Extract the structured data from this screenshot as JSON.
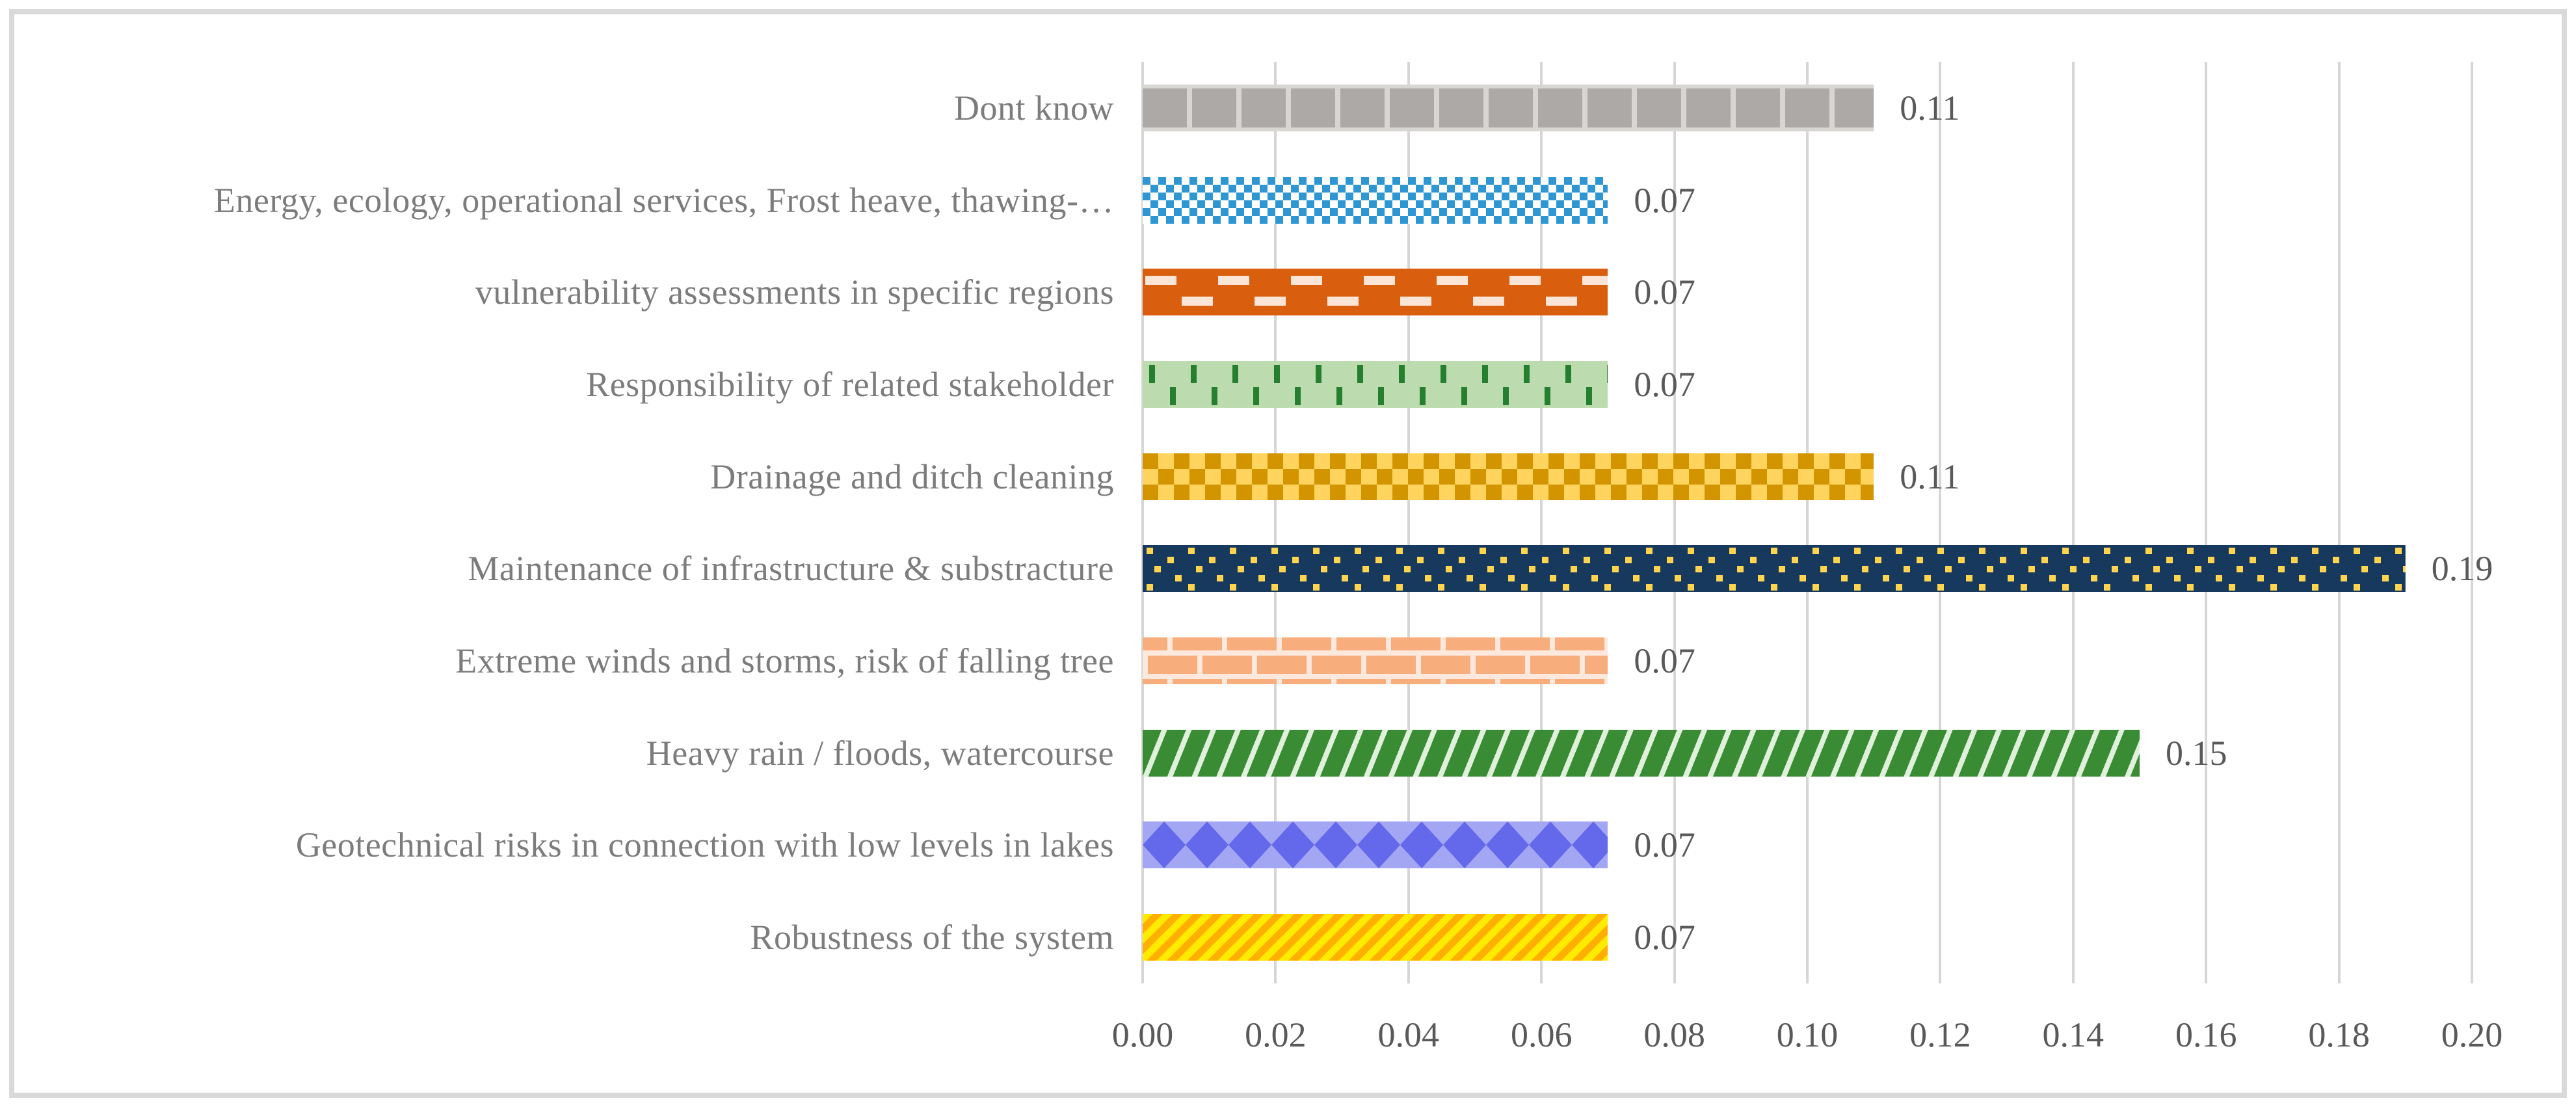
{
  "page": {
    "background_color": "#FFFFFF",
    "border_color": "#D9D9D9",
    "label_text_color": "#7C7C7C",
    "value_text_color": "#595959",
    "gridline_color": "#D6D6D6"
  },
  "chart_data": {
    "type": "bar",
    "orientation": "horizontal",
    "title": "",
    "xlabel": "",
    "ylabel": "",
    "xlim": [
      0.0,
      0.2
    ],
    "grid": "vertical",
    "legend_position": "none",
    "categories": [
      "Dont know",
      "Energy, ecology, operational services, Frost heave, thawing-…",
      "vulnerability assessments in specific regions",
      "Responsibility of related stakeholder",
      "Drainage and ditch cleaning",
      "Maintenance of infrastructure & substracture",
      "Extreme winds and storms, risk of falling tree",
      "Heavy rain / floods, watercourse",
      "Geotechnical risks in connection with low levels in lakes",
      "Robustness of the system"
    ],
    "values": [
      0.11,
      0.07,
      0.07,
      0.07,
      0.11,
      0.19,
      0.07,
      0.15,
      0.07,
      0.07
    ],
    "value_labels": [
      "0.11",
      "0.07",
      "0.07",
      "0.07",
      "0.11",
      "0.19",
      "0.07",
      "0.15",
      "0.07",
      "0.07"
    ],
    "x_ticks": [
      "0.00",
      "0.02",
      "0.04",
      "0.06",
      "0.08",
      "0.10",
      "0.12",
      "0.14",
      "0.16",
      "0.18",
      "0.20"
    ],
    "bar_styles": [
      {
        "pattern": "vertical-segments-gray",
        "fg": "#ACA9A6",
        "bg": "#D8D6D2"
      },
      {
        "pattern": "checker-small-blue",
        "fg": "#2E96D2",
        "bg": "#FFFFFF"
      },
      {
        "pattern": "dashed-horizontal-orange",
        "fg": "#FBE5D6",
        "bg": "#D95E0E"
      },
      {
        "pattern": "dashed-vertical-green",
        "fg": "#267F2E",
        "bg": "#BCDCAF"
      },
      {
        "pattern": "checker-large-gold",
        "fg": "#D29500",
        "bg": "#FFD45E"
      },
      {
        "pattern": "dotted-navy",
        "fg": "#FFD44E",
        "bg": "#17395E"
      },
      {
        "pattern": "brick-peach",
        "fg": "#FCE8DC",
        "bg": "#F8AD7C"
      },
      {
        "pattern": "diagonal-stripe-green",
        "fg": "#DFF0DB",
        "bg": "#3A8C34"
      },
      {
        "pattern": "diamond-periwinkle",
        "fg": "#6468EA",
        "bg": "#A3A6F3"
      },
      {
        "pattern": "diagonal-stripe-yellow",
        "fg": "#FFAF00",
        "bg": "#FFEB00"
      }
    ]
  }
}
